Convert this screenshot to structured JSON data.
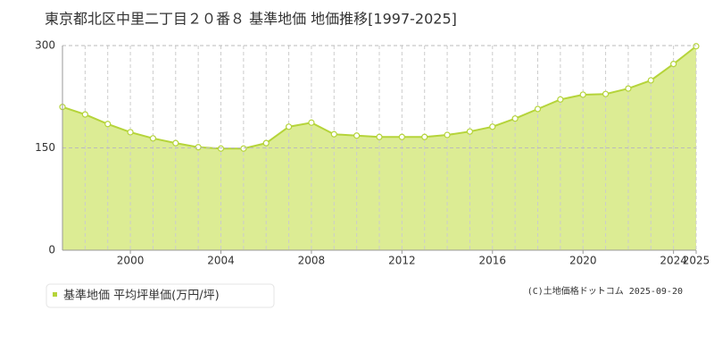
{
  "chart_data": {
    "type": "area",
    "title": "東京都北区中里二丁目２０番８ 基準地価 地価推移[1997-2025]",
    "x": [
      1997,
      1998,
      1999,
      2000,
      2001,
      2002,
      2003,
      2004,
      2005,
      2006,
      2007,
      2008,
      2009,
      2010,
      2011,
      2012,
      2013,
      2014,
      2015,
      2016,
      2017,
      2018,
      2019,
      2020,
      2021,
      2022,
      2023,
      2024,
      2025
    ],
    "series": [
      {
        "name": "基準地価 平均坪単価(万円/坪)",
        "color": "#b5d43a",
        "values": [
          210,
          199,
          185,
          173,
          164,
          157,
          151,
          149,
          149,
          157,
          181,
          187,
          170,
          168,
          166,
          166,
          166,
          169,
          174,
          181,
          193,
          207,
          221,
          228,
          229,
          237,
          249,
          273,
          299
        ]
      }
    ],
    "xlim": [
      1997,
      2025
    ],
    "xticks": [
      2000,
      2004,
      2008,
      2012,
      2016,
      2020,
      2024,
      2025
    ],
    "ylim": [
      0,
      300
    ],
    "yticks": [
      0,
      150,
      300
    ],
    "grid": true,
    "footer": "(C)土地価格ドットコム 2025-09-20"
  }
}
